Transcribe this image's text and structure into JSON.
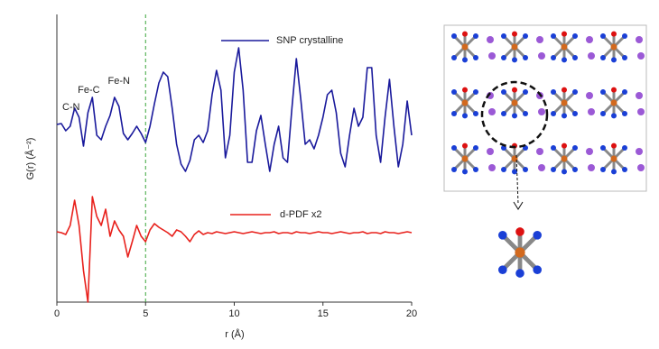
{
  "chart_data": {
    "type": "line",
    "xlabel": "r (Å)",
    "ylabel": "G(r) (Å⁻²)",
    "x": [
      0,
      0.25,
      0.5,
      0.75,
      1,
      1.25,
      1.5,
      1.75,
      2,
      2.25,
      2.5,
      2.75,
      3,
      3.25,
      3.5,
      3.75,
      4,
      4.25,
      4.5,
      4.75,
      5,
      5.25,
      5.5,
      5.75,
      6,
      6.25,
      6.5,
      6.75,
      7,
      7.25,
      7.5,
      7.75,
      8,
      8.25,
      8.5,
      8.75,
      9,
      9.25,
      9.5,
      9.75,
      10,
      10.25,
      10.5,
      10.75,
      11,
      11.25,
      11.5,
      11.75,
      12,
      12.25,
      12.5,
      12.75,
      13,
      13.25,
      13.5,
      13.75,
      14,
      14.25,
      14.5,
      14.75,
      15,
      15.25,
      15.5,
      15.75,
      16,
      16.25,
      16.5,
      16.75,
      17,
      17.25,
      17.5,
      17.75,
      18,
      18.25,
      18.5,
      18.75,
      19,
      19.25,
      19.5,
      19.75,
      20
    ],
    "series": [
      {
        "name": "SNP crystalline",
        "color": "#1a1a9c",
        "values": [
          197,
          198,
          190,
          195,
          215,
          205,
          173,
          210,
          227,
          185,
          180,
          195,
          207,
          227,
          217,
          187,
          180,
          187,
          195,
          187,
          177,
          195,
          220,
          243,
          255,
          250,
          215,
          175,
          153,
          145,
          157,
          180,
          185,
          177,
          190,
          230,
          257,
          235,
          160,
          185,
          255,
          282,
          235,
          155,
          155,
          190,
          207,
          175,
          145,
          175,
          195,
          160,
          155,
          215,
          270,
          225,
          175,
          180,
          170,
          185,
          205,
          230,
          235,
          210,
          165,
          150,
          185,
          215,
          195,
          205,
          260,
          260,
          185,
          155,
          205,
          247,
          195,
          150,
          175,
          223,
          185
        ]
      },
      {
        "name": "d-PDF x2",
        "color": "#e8211c",
        "values": [
          78,
          77,
          75,
          85,
          113,
          85,
          35,
          0,
          117,
          95,
          85,
          103,
          73,
          90,
          80,
          73,
          50,
          67,
          85,
          73,
          67,
          80,
          87,
          83,
          80,
          77,
          73,
          80,
          78,
          73,
          67,
          75,
          79,
          75,
          77,
          76,
          78,
          77,
          76,
          77,
          78,
          77,
          76,
          77,
          78,
          77,
          76,
          77,
          77,
          78,
          76,
          77,
          77,
          76,
          78,
          77,
          77,
          76,
          77,
          78,
          77,
          77,
          76,
          77,
          78,
          77,
          76,
          77,
          77,
          78,
          76,
          77,
          77,
          76,
          78,
          77,
          77,
          76,
          77,
          78,
          77
        ]
      }
    ],
    "xlim": [
      0,
      20
    ],
    "xticks": [
      0,
      5,
      10,
      15,
      20
    ],
    "ylim": [
      0,
      319
    ],
    "reference_line": {
      "x": 5,
      "color": "#3aa63a"
    },
    "annotations": [
      {
        "text": "C-N",
        "x": 0.8,
        "y": 216
      },
      {
        "text": "Fe-C",
        "x": 1.8,
        "y": 235
      },
      {
        "text": "Fe-N",
        "x": 3.5,
        "y": 245
      }
    ]
  }
}
